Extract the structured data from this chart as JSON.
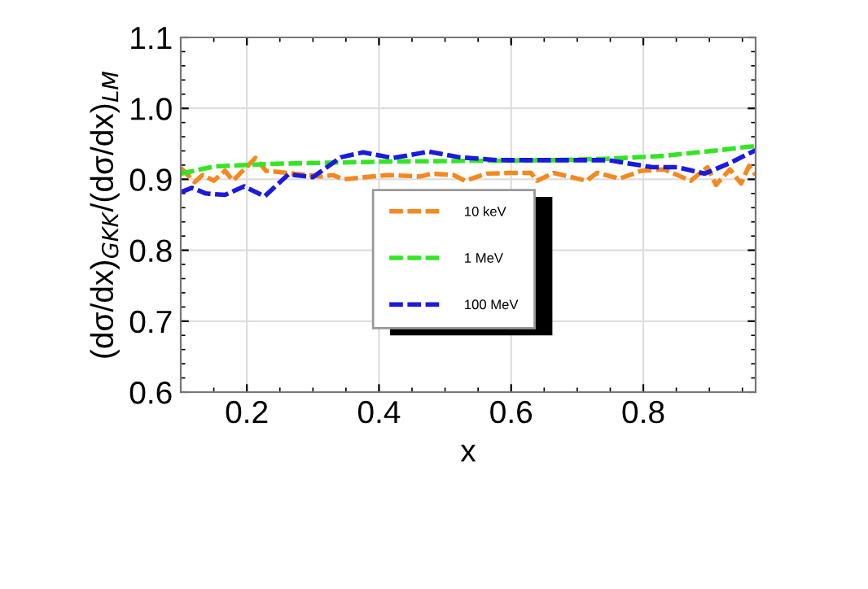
{
  "chart_data": {
    "type": "line",
    "xlabel": "x",
    "ylabel": "(dσ/dx)$_{GKK}$/(dσ/dx)$_{LM}$",
    "xlim": [
      0.1,
      0.97
    ],
    "ylim": [
      0.6,
      1.1
    ],
    "xticks": [
      0.2,
      0.4,
      0.6,
      0.8
    ],
    "yticks": [
      {
        "value": 0.6,
        "label": "0.6"
      },
      {
        "value": 0.7,
        "label": "0.7"
      },
      {
        "value": 0.8,
        "label": "0.8"
      },
      {
        "value": 0.9,
        "label": "0.9"
      },
      {
        "value": 1.0,
        "label": "1.0"
      },
      {
        "value": 1.1,
        "label": "1.1"
      }
    ],
    "grid": true,
    "legend": "center",
    "line_style": "dashed",
    "series": [
      {
        "name": "10 keV",
        "color": "#f5881f",
        "x": [
          0.1,
          0.121,
          0.133,
          0.15,
          0.167,
          0.179,
          0.196,
          0.213,
          0.229,
          0.271,
          0.313,
          0.33,
          0.346,
          0.413,
          0.463,
          0.48,
          0.513,
          0.53,
          0.563,
          0.597,
          0.63,
          0.639,
          0.664,
          0.714,
          0.73,
          0.764,
          0.797,
          0.831,
          0.872,
          0.897,
          0.91,
          0.931,
          0.948,
          0.96,
          0.97
        ],
        "values": [
          0.916,
          0.896,
          0.906,
          0.898,
          0.912,
          0.898,
          0.914,
          0.93,
          0.912,
          0.908,
          0.904,
          0.906,
          0.9,
          0.906,
          0.904,
          0.908,
          0.906,
          0.898,
          0.908,
          0.909,
          0.909,
          0.898,
          0.909,
          0.898,
          0.909,
          0.901,
          0.912,
          0.914,
          0.898,
          0.917,
          0.892,
          0.914,
          0.894,
          0.919,
          0.906
        ]
      },
      {
        "name": "1 MeV",
        "color": "#33e622",
        "x": [
          0.1,
          0.15,
          0.246,
          0.413,
          0.664,
          0.747,
          0.831,
          0.914,
          0.97
        ],
        "values": [
          0.908,
          0.918,
          0.922,
          0.925,
          0.927,
          0.929,
          0.933,
          0.941,
          0.947
        ]
      },
      {
        "name": "100 MeV",
        "color": "#1a1ae0",
        "x": [
          0.1,
          0.117,
          0.138,
          0.167,
          0.196,
          0.227,
          0.263,
          0.3,
          0.342,
          0.376,
          0.421,
          0.476,
          0.522,
          0.58,
          0.747,
          0.814,
          0.851,
          0.893,
          0.931,
          0.97
        ],
        "values": [
          0.882,
          0.888,
          0.88,
          0.878,
          0.89,
          0.876,
          0.907,
          0.903,
          0.931,
          0.938,
          0.93,
          0.939,
          0.931,
          0.927,
          0.927,
          0.917,
          0.917,
          0.908,
          0.923,
          0.941
        ]
      }
    ]
  }
}
